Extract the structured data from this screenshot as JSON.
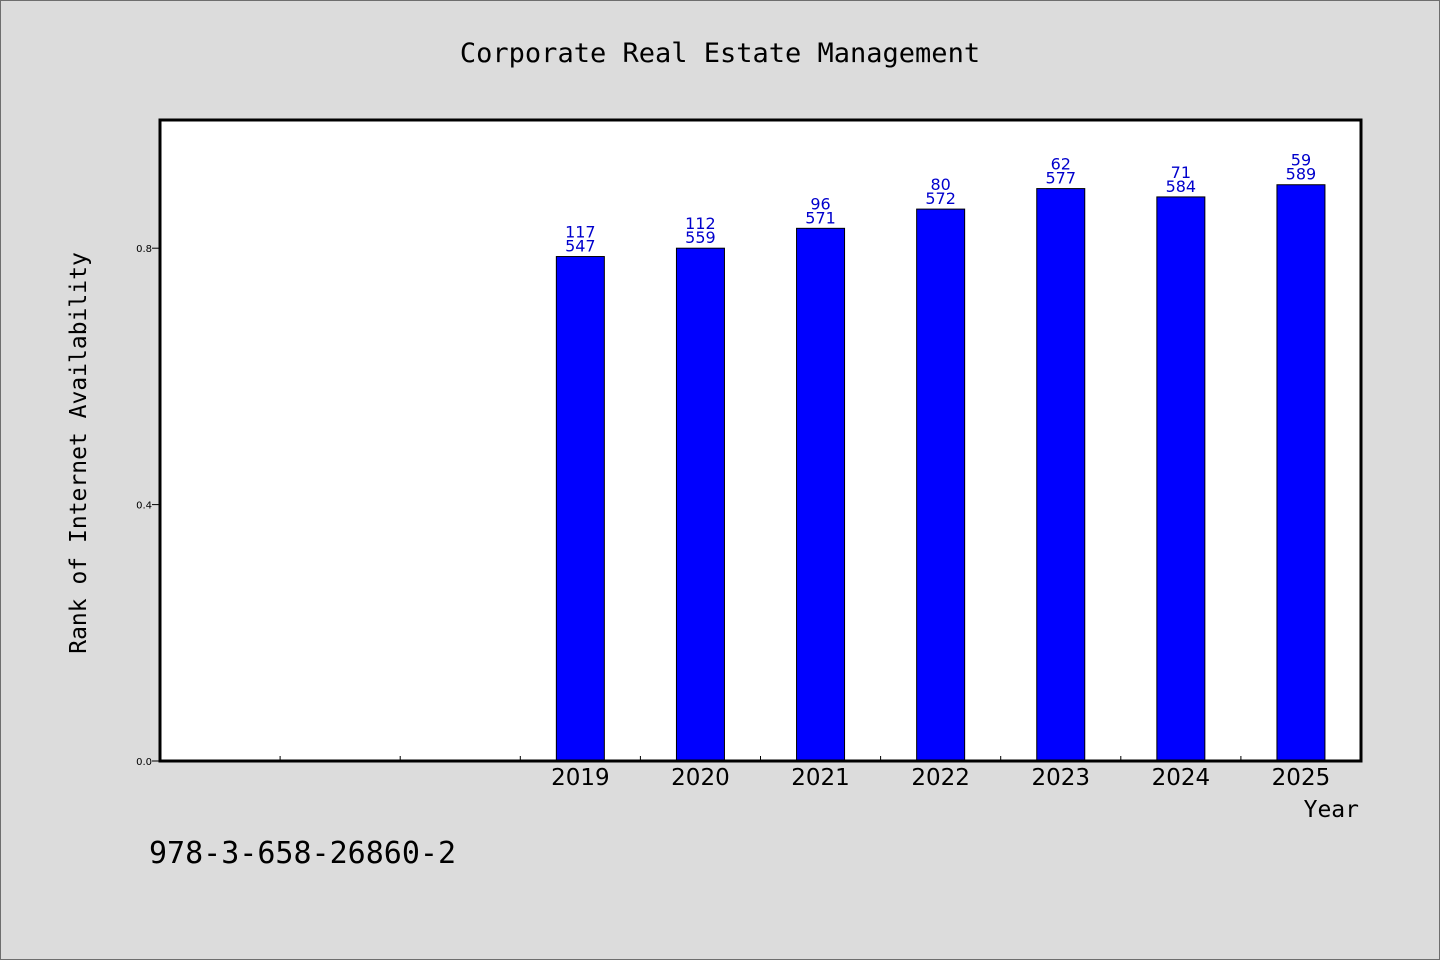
{
  "chart_data": {
    "type": "bar",
    "title": "Corporate Real Estate Management",
    "xlabel": "Year",
    "ylabel": "Rank of Internet Availability",
    "categories": [
      "",
      "",
      "",
      "2019",
      "2020",
      "2021",
      "2022",
      "2023",
      "2024",
      "2025"
    ],
    "values": [
      null,
      null,
      null,
      0.787,
      0.8,
      0.831,
      0.861,
      0.893,
      0.88,
      0.899
    ],
    "label_top": [
      "",
      "",
      "",
      "117",
      "112",
      "96",
      "80",
      "62",
      "71",
      "59"
    ],
    "label_bottom": [
      "",
      "",
      "",
      "547",
      "559",
      "571",
      "572",
      "577",
      "584",
      "589"
    ],
    "ylim": [
      0,
      1.0
    ],
    "yticks": [
      0.0,
      0.4,
      0.8
    ],
    "ytick_labels": [
      "0.0",
      "0.4",
      "0.8"
    ],
    "grid": false,
    "bar_color": "#0000ff",
    "label_color": "#0000cc"
  },
  "footnote": "978-3-658-26860-2",
  "colors": {
    "background": "#dcdcdc",
    "plot_background": "#ffffff"
  }
}
